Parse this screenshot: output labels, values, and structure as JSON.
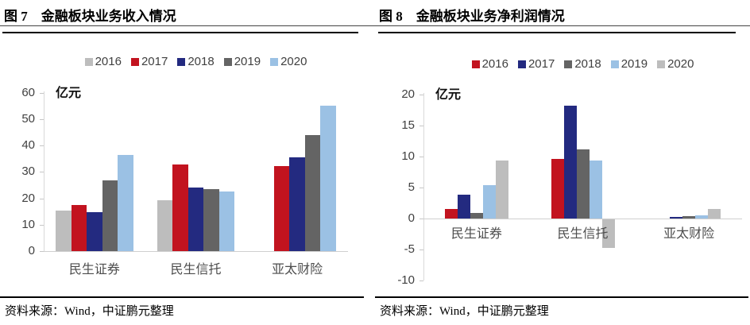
{
  "panels": [
    {
      "figure_label": "图 7",
      "title": "图 7　金融板块业务收入情况",
      "source": "资料来源：Wind，中证鹏元整理"
    },
    {
      "figure_label": "图 8",
      "title": "图 8　金融板块业务净利润情况",
      "source": "资料来源：Wind，中证鹏元整理"
    }
  ],
  "chart_data": [
    {
      "type": "bar",
      "title": "图 7 金融板块业务收入情况",
      "categories": [
        "民生证券",
        "民生信托",
        "亚太财险"
      ],
      "series": [
        {
          "name": "2016",
          "color": "#BDBDBD",
          "values": [
            15.5,
            19.4,
            null
          ]
        },
        {
          "name": "2017",
          "color": "#C2131F",
          "values": [
            17.4,
            33.0,
            32.4
          ]
        },
        {
          "name": "2018",
          "color": "#232A80",
          "values": [
            14.7,
            24.0,
            35.5
          ]
        },
        {
          "name": "2019",
          "color": "#646464",
          "values": [
            26.9,
            23.5,
            43.9
          ]
        },
        {
          "name": "2020",
          "color": "#9BC1E4",
          "values": [
            36.4,
            22.6,
            55.2
          ]
        }
      ],
      "xlabel": "",
      "ylabel": "亿元",
      "ylim": [
        0,
        60
      ],
      "ytick_step": 10,
      "grid": false,
      "legend_position": "top"
    },
    {
      "type": "bar",
      "title": "图 8 金融板块业务净利润情况",
      "categories": [
        "民生证券",
        "民生信托",
        "亚太财险"
      ],
      "series": [
        {
          "name": "2016",
          "color": "#C2131F",
          "values": [
            1.6,
            9.6,
            0
          ]
        },
        {
          "name": "2017",
          "color": "#232A80",
          "values": [
            3.9,
            18.2,
            0.2
          ]
        },
        {
          "name": "2018",
          "color": "#646464",
          "values": [
            0.9,
            11.1,
            0.4
          ]
        },
        {
          "name": "2019",
          "color": "#9BC1E4",
          "values": [
            5.4,
            9.4,
            0.5
          ]
        },
        {
          "name": "2020",
          "color": "#BDBDBD",
          "values": [
            9.3,
            -4.6,
            1.5
          ]
        }
      ],
      "xlabel": "",
      "ylabel": "亿元",
      "ylim": [
        -10,
        20
      ],
      "ytick_step": 5,
      "grid": false,
      "legend_position": "top"
    }
  ]
}
